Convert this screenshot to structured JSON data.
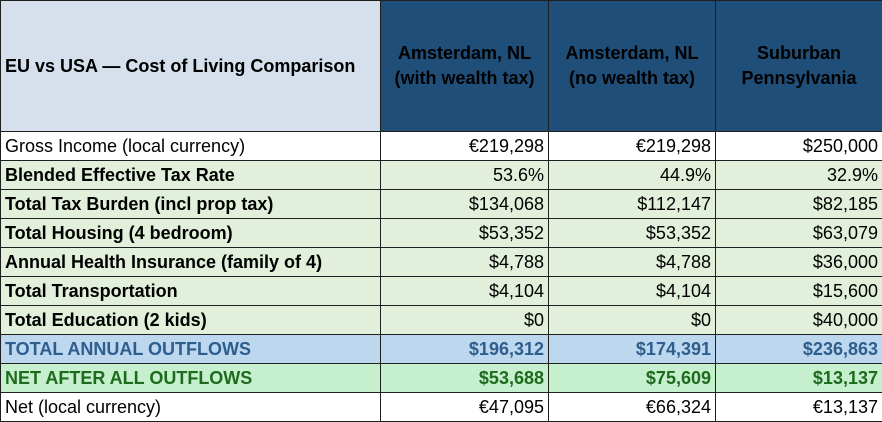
{
  "table": {
    "title": "EU vs USA — Cost of Living Comparison",
    "columns": [
      {
        "line1": "Amsterdam, NL",
        "line2": "(with wealth tax)"
      },
      {
        "line1": "Amsterdam, NL",
        "line2": "(no wealth tax)"
      },
      {
        "line1": "Suburban",
        "line2": "Pennsylvania"
      }
    ],
    "rows": [
      {
        "label": "Gross Income (local currency)",
        "values": [
          "€219,298",
          "€219,298",
          "$250,000"
        ]
      },
      {
        "label": "Blended Effective Tax Rate",
        "values": [
          "53.6%",
          "44.9%",
          "32.9%"
        ]
      },
      {
        "label": "Total Tax Burden (incl prop tax)",
        "values": [
          "$134,068",
          "$112,147",
          "$82,185"
        ]
      },
      {
        "label": "Total Housing (4 bedroom)",
        "values": [
          "$53,352",
          "$53,352",
          "$63,079"
        ]
      },
      {
        "label": "Annual Health Insurance (family of 4)",
        "values": [
          "$4,788",
          "$4,788",
          "$36,000"
        ]
      },
      {
        "label": "Total Transportation",
        "values": [
          "$4,104",
          "$4,104",
          "$15,600"
        ]
      },
      {
        "label": "Total Education (2 kids)",
        "values": [
          "$0",
          "$0",
          "$40,000"
        ]
      },
      {
        "label": "TOTAL ANNUAL OUTFLOWS",
        "values": [
          "$196,312",
          "$174,391",
          "$236,863"
        ]
      },
      {
        "label": "NET AFTER ALL OUTFLOWS",
        "values": [
          "$53,688",
          "$75,609",
          "$13,137"
        ]
      },
      {
        "label": "Net (local currency)",
        "values": [
          "€47,095",
          "€66,324",
          "€13,137"
        ]
      }
    ]
  },
  "colors": {
    "header_fill": "#1f4e79",
    "title_fill": "#d5e0ec",
    "title_text": "#2e5e8e",
    "row_fill_green": "#e2efda",
    "total_fill": "#bdd7ee",
    "net_fill": "#c6efce",
    "net_text": "#1d6b1d"
  }
}
